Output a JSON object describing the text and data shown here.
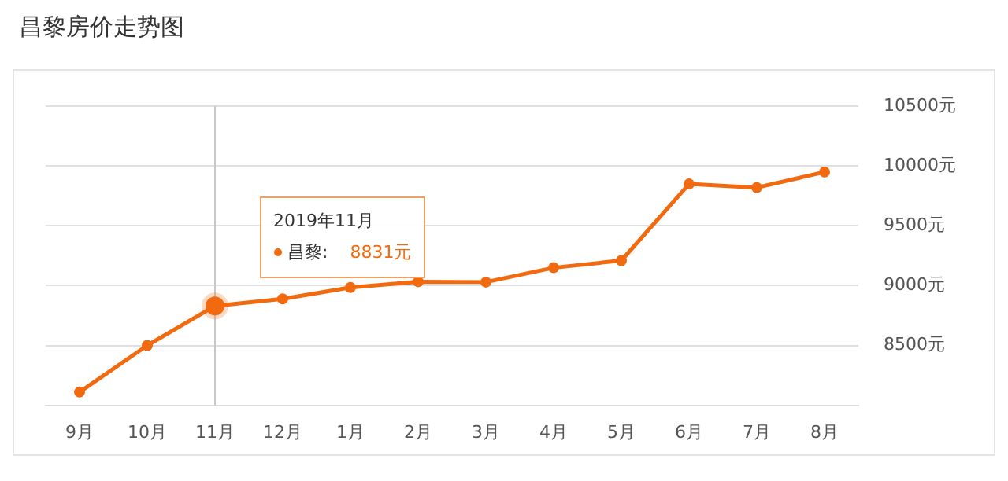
{
  "chart_data": {
    "type": "line",
    "title": "昌黎房价走势图",
    "categories": [
      "9月",
      "10月",
      "11月",
      "12月",
      "1月",
      "2月",
      "3月",
      "4月",
      "5月",
      "6月",
      "7月",
      "8月"
    ],
    "series": [
      {
        "color": "#f26a10",
        "values": [
          8110,
          8500,
          8831,
          8890,
          8985,
          9033,
          9030,
          9150,
          9210,
          9850,
          9820,
          9950
        ]
      }
    ],
    "ylim": [
      8000,
      10500
    ],
    "yticks": [
      {
        "value": 8500,
        "label": "8500元"
      },
      {
        "value": 9000,
        "label": "9000元"
      },
      {
        "value": 9500,
        "label": "9500元"
      },
      {
        "value": 10000,
        "label": "10000元"
      },
      {
        "value": 10500,
        "label": "10500元"
      }
    ],
    "grid": "y",
    "legend": false,
    "marker": "circle",
    "line_style": "solid",
    "ref_lines": [
      {
        "axis": "x",
        "value": "11月",
        "color": "#c8c8c8"
      }
    ],
    "annotations": [
      "2019年11月",
      "昌黎:",
      "8831元"
    ]
  }
}
